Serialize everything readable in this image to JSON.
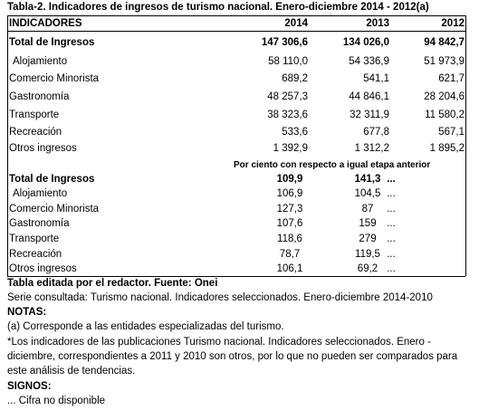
{
  "title": "Tabla-2. Indicadores de ingresos de turismo nacional.  Enero-diciembre 2014 - 2012(a)",
  "table": {
    "headers": [
      "INDICADORES",
      "2014",
      "2013",
      "2012"
    ],
    "sections": [
      {
        "rows": [
          [
            "Total de Ingresos",
            "147 306,6",
            "134 026,0",
            "94 842,7"
          ],
          [
            "Alojamiento",
            "58 110,0",
            "54 336,9",
            "51 973,9"
          ],
          [
            "Comercio Minorista",
            "689,2",
            "541,1",
            "621,7"
          ],
          [
            "Gastronomía",
            "48 257,3",
            "44 846,1",
            "28 204,6"
          ],
          [
            "Transporte",
            "38 323,6",
            "32 311,9",
            "11 580,2"
          ],
          [
            "Recreación",
            "533,6",
            "677,8",
            "567,1"
          ],
          [
            "Otros ingresos",
            "1 392,9",
            "1 312,2",
            "1 895,2"
          ]
        ]
      },
      {
        "subheading": "Por ciento con respecto a igual etapa anterior",
        "rows": [
          [
            "Total de Ingresos",
            "109,9",
            "141,3",
            "..."
          ],
          [
            "Alojamiento",
            "106,9",
            "104,5",
            "..."
          ],
          [
            "Comercio Minorista",
            "127,3",
            "87",
            "..."
          ],
          [
            "Gastronomía",
            "107,6",
            "159",
            "..."
          ],
          [
            "Transporte",
            "118,6",
            "279",
            "..."
          ],
          [
            "Recreación",
            "78,7",
            "119,5",
            "..."
          ],
          [
            "Otros ingresos",
            "106,1",
            "69,2",
            "..."
          ]
        ]
      }
    ]
  },
  "notes": {
    "source": "Tabla editada por el redactor. Fuente: Onei",
    "series": "Serie consultada: Turismo nacional. Indicadores seleccionados. Enero-diciembre 2014-2010",
    "notes_heading": "NOTAS:",
    "note_a": "(a) Corresponde a las entidades especializadas del turismo.",
    "note_star": "*Los indicadores de las publicaciones Turismo nacional. Indicadores seleccionados. Enero - diciembre, correspondientes a 2011 y 2010  son otros, por lo que no pueden ser comparados para este análisis de tendencias.",
    "signs_heading": "SIGNOS:",
    "sign": "... Cifra no disponible"
  }
}
